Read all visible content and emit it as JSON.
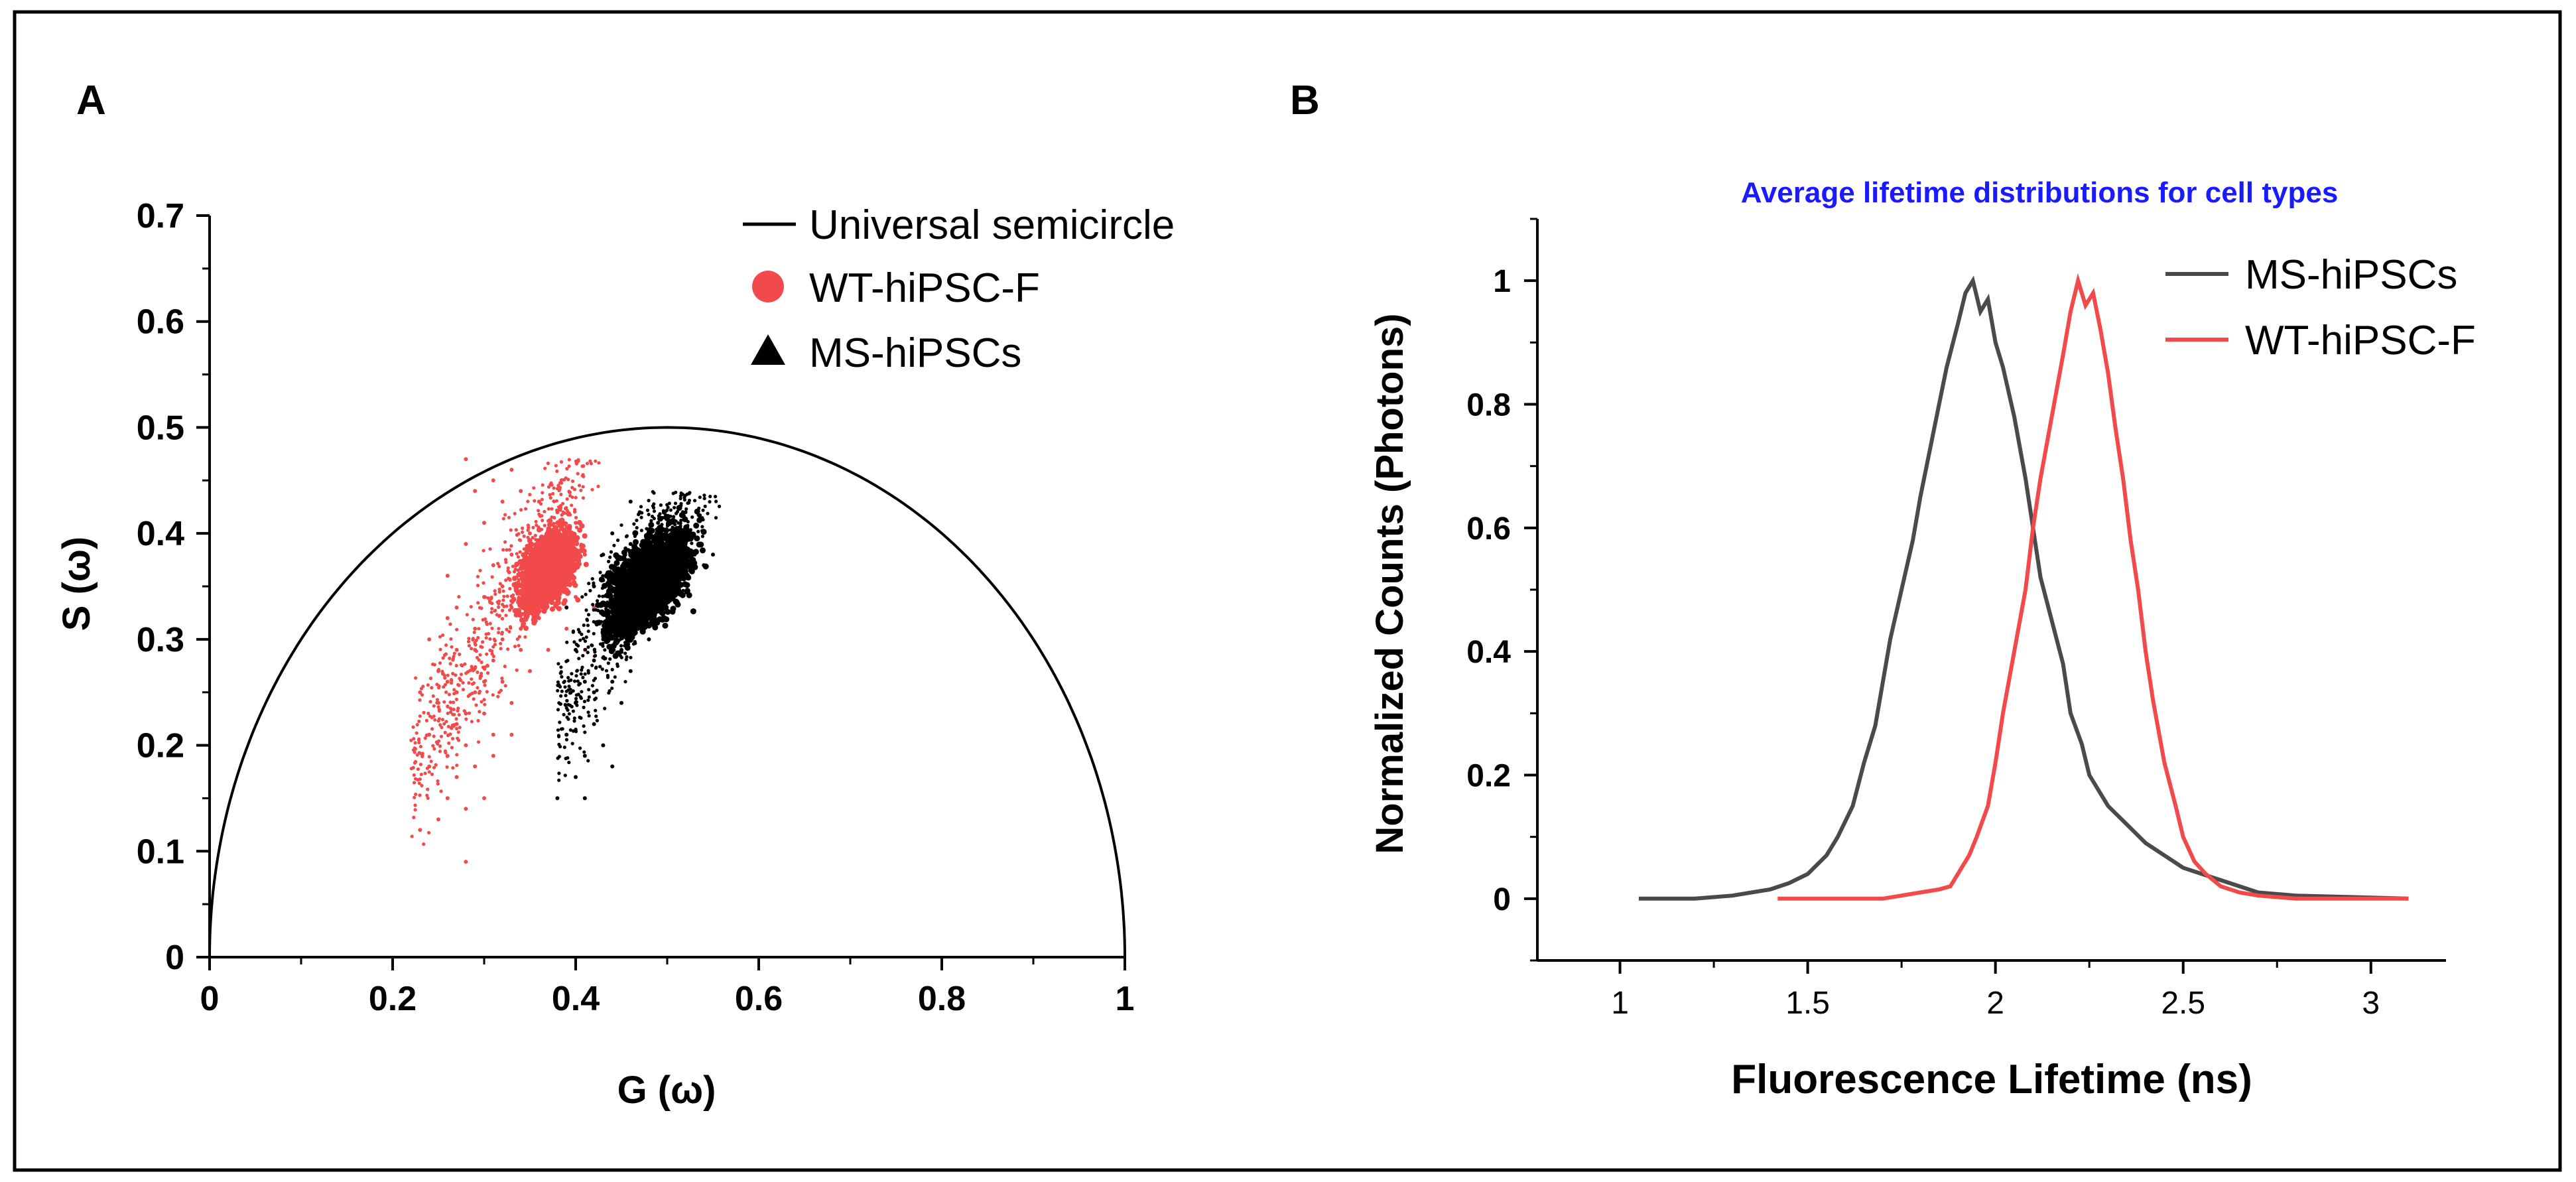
{
  "colors": {
    "frame": "#000000",
    "wt": "#f24a4a",
    "ms": "#000000",
    "ms_line": "#4a4a4a",
    "subtitle": "#1a1aff"
  },
  "panel_labels": {
    "a": "A",
    "b": "B"
  },
  "chart_data": [
    {
      "id": "A",
      "type": "scatter",
      "title": "",
      "xlabel": "G (ω)",
      "ylabel": "S (ω)",
      "xlim": [
        0,
        1
      ],
      "ylim": [
        0,
        0.7
      ],
      "xticks": [
        0,
        0.2,
        0.4,
        0.6,
        0.8,
        1
      ],
      "xtick_labels": [
        "0",
        "0.2",
        "0.4",
        "0.6",
        "0.8",
        "1"
      ],
      "yticks": [
        0,
        0.1,
        0.2,
        0.3,
        0.4,
        0.5,
        0.6,
        0.7
      ],
      "ytick_labels": [
        "0",
        "0.1",
        "0.2",
        "0.3",
        "0.4",
        "0.5",
        "0.6",
        "0.7"
      ],
      "legend_position": "top-right",
      "legend": [
        "Universal semicircle",
        "WT-hiPSC-F",
        "MS-hiPSCs"
      ],
      "semicircle": {
        "center_g": 0.5,
        "radius": 0.5
      },
      "series": [
        {
          "name": "WT-hiPSC-F",
          "marker": "circle",
          "g_range": [
            0.22,
            0.43
          ],
          "s_range": [
            0.09,
            0.47
          ],
          "dense_core": {
            "g_range": [
              0.33,
              0.41
            ],
            "s_range": [
              0.32,
              0.41
            ]
          },
          "points": [
            [
              0.34,
              0.36
            ],
            [
              0.36,
              0.38
            ],
            [
              0.38,
              0.37
            ],
            [
              0.35,
              0.34
            ],
            [
              0.37,
              0.35
            ],
            [
              0.39,
              0.39
            ],
            [
              0.33,
              0.33
            ],
            [
              0.36,
              0.32
            ],
            [
              0.32,
              0.3
            ],
            [
              0.31,
              0.28
            ],
            [
              0.3,
              0.26
            ],
            [
              0.29,
              0.25
            ],
            [
              0.28,
              0.23
            ],
            [
              0.27,
              0.22
            ],
            [
              0.28,
              0.2
            ],
            [
              0.26,
              0.19
            ],
            [
              0.25,
              0.24
            ],
            [
              0.24,
              0.21
            ],
            [
              0.27,
              0.17
            ],
            [
              0.29,
              0.18
            ],
            [
              0.26,
              0.15
            ],
            [
              0.25,
              0.13
            ],
            [
              0.23,
              0.12
            ],
            [
              0.28,
              0.09
            ],
            [
              0.3,
              0.15
            ],
            [
              0.31,
              0.21
            ],
            [
              0.33,
              0.24
            ],
            [
              0.29,
              0.31
            ],
            [
              0.27,
              0.33
            ],
            [
              0.26,
              0.36
            ],
            [
              0.28,
              0.39
            ],
            [
              0.3,
              0.41
            ],
            [
              0.32,
              0.43
            ],
            [
              0.31,
              0.45
            ],
            [
              0.29,
              0.44
            ],
            [
              0.33,
              0.46
            ],
            [
              0.28,
              0.47
            ],
            [
              0.34,
              0.44
            ],
            [
              0.36,
              0.43
            ],
            [
              0.38,
              0.42
            ],
            [
              0.4,
              0.41
            ],
            [
              0.41,
              0.38
            ],
            [
              0.4,
              0.34
            ],
            [
              0.42,
              0.33
            ],
            [
              0.39,
              0.31
            ],
            [
              0.41,
              0.29
            ],
            [
              0.37,
              0.29
            ],
            [
              0.35,
              0.27
            ],
            [
              0.34,
              0.29
            ],
            [
              0.32,
              0.35
            ],
            [
              0.3,
              0.34
            ],
            [
              0.27,
              0.29
            ],
            [
              0.25,
              0.27
            ],
            [
              0.24,
              0.3
            ],
            [
              0.26,
              0.26
            ],
            [
              0.23,
              0.25
            ],
            [
              0.35,
              0.4
            ],
            [
              0.37,
              0.4
            ],
            [
              0.33,
              0.38
            ],
            [
              0.31,
              0.37
            ],
            [
              0.36,
              0.35
            ],
            [
              0.38,
              0.33
            ],
            [
              0.34,
              0.31
            ],
            [
              0.32,
              0.26
            ],
            [
              0.3,
              0.23
            ],
            [
              0.31,
              0.19
            ],
            [
              0.33,
              0.21
            ],
            [
              0.27,
              0.25
            ],
            [
              0.29,
              0.29
            ],
            [
              0.26,
              0.32
            ],
            [
              0.24,
              0.18
            ],
            [
              0.28,
              0.14
            ]
          ]
        },
        {
          "name": "MS-hiPSCs",
          "marker": "triangle",
          "g_range": [
            0.38,
            0.56
          ],
          "s_range": [
            0.15,
            0.44
          ],
          "dense_core": {
            "g_range": [
              0.42,
              0.54
            ],
            "s_range": [
              0.3,
              0.41
            ]
          },
          "points": [
            [
              0.45,
              0.35
            ],
            [
              0.48,
              0.37
            ],
            [
              0.5,
              0.38
            ],
            [
              0.52,
              0.39
            ],
            [
              0.47,
              0.33
            ],
            [
              0.44,
              0.32
            ],
            [
              0.49,
              0.36
            ],
            [
              0.51,
              0.4
            ],
            [
              0.53,
              0.38
            ],
            [
              0.54,
              0.37
            ],
            [
              0.46,
              0.39
            ],
            [
              0.43,
              0.3
            ],
            [
              0.42,
              0.28
            ],
            [
              0.41,
              0.26
            ],
            [
              0.4,
              0.24
            ],
            [
              0.42,
              0.22
            ],
            [
              0.43,
              0.2
            ],
            [
              0.41,
              0.19
            ],
            [
              0.39,
              0.21
            ],
            [
              0.4,
              0.17
            ],
            [
              0.38,
              0.15
            ],
            [
              0.41,
              0.15
            ],
            [
              0.44,
              0.18
            ],
            [
              0.45,
              0.24
            ],
            [
              0.46,
              0.27
            ],
            [
              0.48,
              0.3
            ],
            [
              0.47,
              0.42
            ],
            [
              0.49,
              0.41
            ],
            [
              0.46,
              0.43
            ],
            [
              0.52,
              0.42
            ],
            [
              0.55,
              0.38
            ],
            [
              0.5,
              0.34
            ],
            [
              0.42,
              0.35
            ],
            [
              0.43,
              0.38
            ],
            [
              0.44,
              0.4
            ],
            [
              0.39,
              0.33
            ],
            [
              0.4,
              0.29
            ],
            [
              0.44,
              0.26
            ],
            [
              0.42,
              0.25
            ],
            [
              0.45,
              0.29
            ]
          ]
        }
      ]
    },
    {
      "id": "B",
      "type": "line",
      "title": "Average lifetime distributions for cell types",
      "xlabel": "Fluorescence Lifetime (ns)",
      "ylabel": "Normalized Counts (Photons)",
      "xlim": [
        0.78,
        3.2
      ],
      "ylim": [
        -0.1,
        1.1
      ],
      "xticks": [
        1,
        1.5,
        2,
        2.5,
        3
      ],
      "xtick_labels": [
        "1",
        "1.5",
        "2",
        "2.5",
        "3"
      ],
      "yticks": [
        0,
        0.2,
        0.4,
        0.6,
        0.8,
        1
      ],
      "ytick_labels": [
        "0",
        "0.2",
        "0.4",
        "0.6",
        "0.8",
        "1"
      ],
      "legend_position": "top-right",
      "legend": [
        "MS-hiPSCs",
        "WT-hiPSC-F"
      ],
      "series": [
        {
          "name": "MS-hiPSCs",
          "x": [
            1.05,
            1.2,
            1.3,
            1.35,
            1.4,
            1.45,
            1.5,
            1.55,
            1.58,
            1.62,
            1.65,
            1.68,
            1.7,
            1.72,
            1.75,
            1.78,
            1.8,
            1.83,
            1.85,
            1.87,
            1.9,
            1.92,
            1.94,
            1.96,
            1.98,
            2.0,
            2.02,
            2.05,
            2.08,
            2.1,
            2.12,
            2.15,
            2.18,
            2.2,
            2.23,
            2.25,
            2.28,
            2.3,
            2.35,
            2.4,
            2.45,
            2.5,
            2.55,
            2.6,
            2.7,
            2.8,
            3.1
          ],
          "values": [
            0.0,
            0.0,
            0.005,
            0.01,
            0.015,
            0.025,
            0.04,
            0.07,
            0.1,
            0.15,
            0.22,
            0.28,
            0.35,
            0.42,
            0.5,
            0.58,
            0.65,
            0.74,
            0.8,
            0.86,
            0.93,
            0.98,
            1.0,
            0.95,
            0.97,
            0.9,
            0.86,
            0.78,
            0.68,
            0.6,
            0.52,
            0.45,
            0.38,
            0.3,
            0.25,
            0.2,
            0.17,
            0.15,
            0.12,
            0.09,
            0.07,
            0.05,
            0.04,
            0.03,
            0.01,
            0.005,
            0.0
          ]
        },
        {
          "name": "WT-hiPSC-F",
          "x": [
            1.42,
            1.6,
            1.7,
            1.75,
            1.8,
            1.85,
            1.88,
            1.9,
            1.93,
            1.95,
            1.98,
            2.0,
            2.02,
            2.05,
            2.08,
            2.1,
            2.12,
            2.15,
            2.18,
            2.2,
            2.22,
            2.24,
            2.26,
            2.28,
            2.3,
            2.32,
            2.34,
            2.36,
            2.38,
            2.4,
            2.42,
            2.45,
            2.48,
            2.5,
            2.53,
            2.56,
            2.6,
            2.65,
            2.7,
            2.8,
            3.1
          ],
          "values": [
            0.0,
            0.0,
            0.0,
            0.005,
            0.01,
            0.015,
            0.02,
            0.04,
            0.07,
            0.1,
            0.15,
            0.22,
            0.3,
            0.4,
            0.5,
            0.6,
            0.68,
            0.78,
            0.88,
            0.95,
            1.0,
            0.96,
            0.98,
            0.92,
            0.85,
            0.76,
            0.68,
            0.58,
            0.5,
            0.4,
            0.32,
            0.22,
            0.15,
            0.1,
            0.06,
            0.04,
            0.02,
            0.01,
            0.005,
            0.0,
            0.0
          ]
        }
      ]
    }
  ]
}
